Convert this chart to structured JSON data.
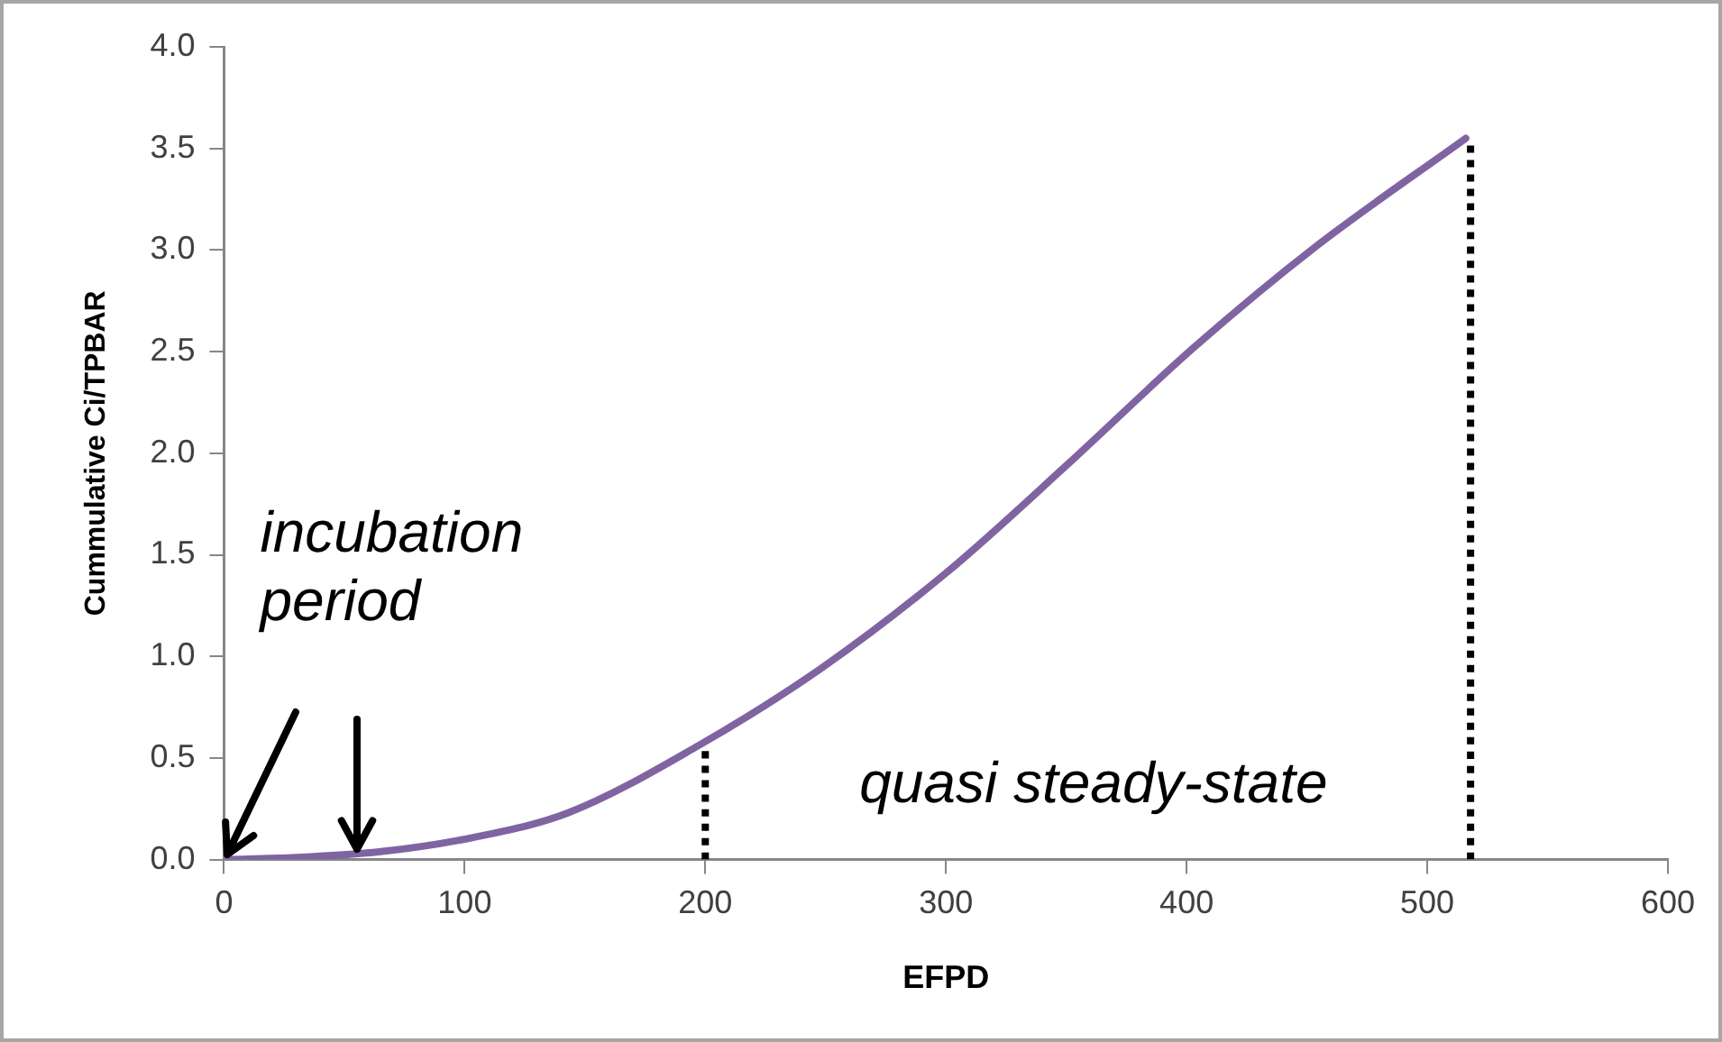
{
  "chart_data": {
    "type": "line",
    "xlabel": "EFPD",
    "ylabel": "Cummulative Ci/TPBAR",
    "xlim": [
      0,
      600
    ],
    "xticks": [
      0,
      100,
      200,
      300,
      400,
      500,
      600
    ],
    "ylim": [
      0,
      4
    ],
    "yticks": [
      {
        "value": 0,
        "label": "0.0"
      },
      {
        "value": 0.5,
        "label": "0.5"
      },
      {
        "value": 1,
        "label": "1.0"
      },
      {
        "value": 1.5,
        "label": "1.5"
      },
      {
        "value": 2,
        "label": "2.0"
      },
      {
        "value": 2.5,
        "label": "2.5"
      },
      {
        "value": 3,
        "label": "3.0"
      },
      {
        "value": 3.5,
        "label": "3.5"
      },
      {
        "value": 4,
        "label": "4.0"
      }
    ],
    "grid": false,
    "legend": false,
    "series": [
      {
        "color": "#8064a2",
        "x": [
          0,
          30,
          66,
          104,
          143,
          197,
          248,
          300,
          351,
          403,
          454,
          516
        ],
        "values": [
          0,
          0.01,
          0.04,
          0.11,
          0.23,
          0.56,
          0.94,
          1.41,
          1.95,
          2.52,
          3.02,
          3.55
        ]
      },
      {
        "color": "#000000",
        "line_style": "dotted",
        "x": [
          200,
          200
        ],
        "values": [
          0,
          0.55
        ]
      },
      {
        "color": "#000000",
        "line_style": "dotted",
        "x": [
          518,
          518
        ],
        "values": [
          0,
          3.55
        ]
      }
    ],
    "annotations": [
      "incubation period",
      "quasi steady-state"
    ]
  }
}
